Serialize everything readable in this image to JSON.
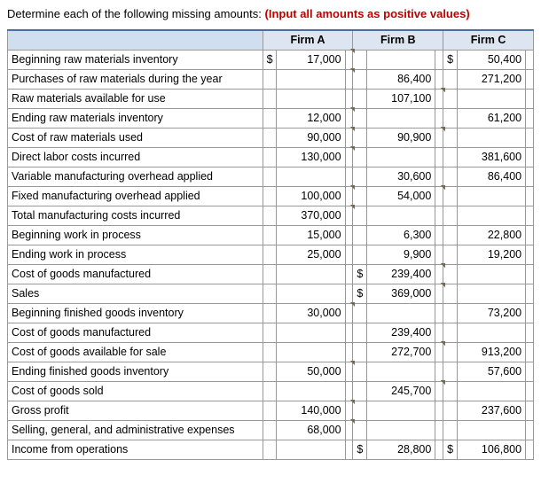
{
  "instruction_black": "Determine each of the following missing amounts:",
  "instruction_red": "(Input all amounts as positive values)",
  "headers": {
    "a": "Firm A",
    "b": "Firm B",
    "c": "Firm C"
  },
  "rows": [
    {
      "label": "Beginning raw materials inventory",
      "a_cur": "$",
      "a": "17,000",
      "a_tab": true,
      "b_cur": "",
      "b": "",
      "b_tab": false,
      "c_cur": "$",
      "c": "50,400",
      "c_tab": false
    },
    {
      "label": "Purchases of raw materials during the year",
      "a_cur": "",
      "a": "",
      "a_tab": true,
      "b_cur": "",
      "b": "86,400",
      "b_tab": false,
      "c_cur": "",
      "c": "271,200",
      "c_tab": false
    },
    {
      "label": "Raw materials available for use",
      "a_cur": "",
      "a": "",
      "a_tab": false,
      "b_cur": "",
      "b": "107,100",
      "b_tab": true,
      "c_cur": "",
      "c": "",
      "c_tab": false
    },
    {
      "label": "Ending raw materials inventory",
      "a_cur": "",
      "a": "12,000",
      "a_tab": true,
      "b_cur": "",
      "b": "",
      "b_tab": false,
      "c_cur": "",
      "c": "61,200",
      "c_tab": false
    },
    {
      "label": "Cost of raw materials used",
      "a_cur": "",
      "a": "90,000",
      "a_tab": true,
      "b_cur": "",
      "b": "90,900",
      "b_tab": true,
      "c_cur": "",
      "c": "",
      "c_tab": false
    },
    {
      "label": "Direct labor costs incurred",
      "a_cur": "",
      "a": "130,000",
      "a_tab": true,
      "b_cur": "",
      "b": "",
      "b_tab": false,
      "c_cur": "",
      "c": "381,600",
      "c_tab": false
    },
    {
      "label": "Variable manufacturing overhead applied",
      "a_cur": "",
      "a": "",
      "a_tab": false,
      "b_cur": "",
      "b": "30,600",
      "b_tab": false,
      "c_cur": "",
      "c": "86,400",
      "c_tab": false
    },
    {
      "label": "Fixed manufacturing overhead applied",
      "a_cur": "",
      "a": "100,000",
      "a_tab": true,
      "b_cur": "",
      "b": "54,000",
      "b_tab": true,
      "c_cur": "",
      "c": "",
      "c_tab": false
    },
    {
      "label": "Total manufacturing costs incurred",
      "a_cur": "",
      "a": "370,000",
      "a_tab": true,
      "b_cur": "",
      "b": "",
      "b_tab": false,
      "c_cur": "",
      "c": "",
      "c_tab": false
    },
    {
      "label": "Beginning work in process",
      "a_cur": "",
      "a": "15,000",
      "a_tab": false,
      "b_cur": "",
      "b": "6,300",
      "b_tab": false,
      "c_cur": "",
      "c": "22,800",
      "c_tab": false
    },
    {
      "label": "Ending work in process",
      "a_cur": "",
      "a": "25,000",
      "a_tab": false,
      "b_cur": "",
      "b": "9,900",
      "b_tab": false,
      "c_cur": "",
      "c": "19,200",
      "c_tab": false
    },
    {
      "label": "Cost of goods manufactured",
      "a_cur": "",
      "a": "",
      "a_tab": false,
      "b_cur": "$",
      "b": "239,400",
      "b_tab": true,
      "c_cur": "",
      "c": "",
      "c_tab": false
    },
    {
      "label": "Sales",
      "a_cur": "",
      "a": "",
      "a_tab": false,
      "b_cur": "$",
      "b": "369,000",
      "b_tab": true,
      "c_cur": "",
      "c": "",
      "c_tab": false
    },
    {
      "label": "Beginning finished goods inventory",
      "a_cur": "",
      "a": "30,000",
      "a_tab": true,
      "b_cur": "",
      "b": "",
      "b_tab": false,
      "c_cur": "",
      "c": "73,200",
      "c_tab": false
    },
    {
      "label": "Cost of goods manufactured",
      "a_cur": "",
      "a": "",
      "a_tab": false,
      "b_cur": "",
      "b": "239,400",
      "b_tab": false,
      "c_cur": "",
      "c": "",
      "c_tab": false
    },
    {
      "label": "Cost of goods available for sale",
      "a_cur": "",
      "a": "",
      "a_tab": false,
      "b_cur": "",
      "b": "272,700",
      "b_tab": true,
      "c_cur": "",
      "c": "913,200",
      "c_tab": false
    },
    {
      "label": "Ending finished goods inventory",
      "a_cur": "",
      "a": "50,000",
      "a_tab": true,
      "b_cur": "",
      "b": "",
      "b_tab": false,
      "c_cur": "",
      "c": "57,600",
      "c_tab": false
    },
    {
      "label": "Cost of goods sold",
      "a_cur": "",
      "a": "",
      "a_tab": false,
      "b_cur": "",
      "b": "245,700",
      "b_tab": true,
      "c_cur": "",
      "c": "",
      "c_tab": false
    },
    {
      "label": "Gross profit",
      "a_cur": "",
      "a": "140,000",
      "a_tab": true,
      "b_cur": "",
      "b": "",
      "b_tab": false,
      "c_cur": "",
      "c": "237,600",
      "c_tab": false
    },
    {
      "label": "Selling, general, and administrative expenses",
      "a_cur": "",
      "a": "68,000",
      "a_tab": true,
      "b_cur": "",
      "b": "",
      "b_tab": false,
      "c_cur": "",
      "c": "",
      "c_tab": false
    },
    {
      "label": "Income from operations",
      "a_cur": "",
      "a": "",
      "a_tab": false,
      "b_cur": "$",
      "b": "28,800",
      "b_tab": false,
      "c_cur": "$",
      "c": "106,800",
      "c_tab": false
    }
  ]
}
